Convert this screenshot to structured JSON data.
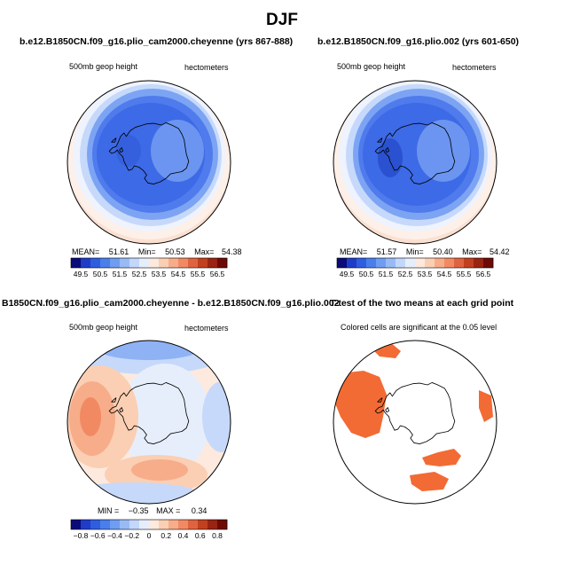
{
  "title": "DJF",
  "panels": [
    {
      "title": "b.e12.B1850CN.f09_g16.plio_cam2000.cheyenne (yrs 867-888)",
      "left_label": "500mb geop height",
      "right_label": "hectometers",
      "stats": {
        "mean_label": "MEAN=",
        "mean": "51.61",
        "min_label": "Min=",
        "min": "50.53",
        "max_label": "Max=",
        "max": "54.38"
      }
    },
    {
      "title": "b.e12.B1850CN.f09_g16.plio.002 (yrs 601-650)",
      "left_label": "500mb geop height",
      "right_label": "hectometers",
      "stats": {
        "mean_label": "MEAN=",
        "mean": "51.57",
        "min_label": "Min=",
        "min": "50.40",
        "max_label": "Max=",
        "max": "54.42"
      }
    },
    {
      "title": "B1850CN.f09_g16.plio_cam2000.cheyenne - b.e12.B1850CN.f09_g16.plio.002",
      "left_label": "500mb geop height",
      "right_label": "hectometers",
      "stats": {
        "min_label": "MIN =",
        "min": "−0.35",
        "max_label": "MAX =",
        "max": "0.34"
      }
    },
    {
      "title": "T-test of the two means at each grid point",
      "note": "Colored cells are significant at the 0.05 level"
    }
  ],
  "chart_data": [
    {
      "type": "heatmap",
      "projection": "polar stereographic (south)",
      "variable": "500mb geop height",
      "units": "hectometers",
      "colorbar_labels": [
        "49.5",
        "50.5",
        "51.5",
        "52.5",
        "53.5",
        "54.5",
        "55.5",
        "56.5"
      ],
      "colorbar_colors": [
        "#0a0a7a",
        "#1f3cc8",
        "#2f5de0",
        "#4a7eeb",
        "#6f9df2",
        "#98bbf6",
        "#c2d7fb",
        "#e6eefc",
        "#fde9dd",
        "#fbcfb3",
        "#f7ad8a",
        "#f18a63",
        "#e0633f",
        "#c2401f",
        "#9b2311",
        "#6e0a05"
      ],
      "mean": 51.61,
      "min": 50.53,
      "max": 54.38
    },
    {
      "type": "heatmap",
      "projection": "polar stereographic (south)",
      "variable": "500mb geop height",
      "units": "hectometers",
      "colorbar_labels": [
        "49.5",
        "50.5",
        "51.5",
        "52.5",
        "53.5",
        "54.5",
        "55.5",
        "56.5"
      ],
      "colorbar_colors": [
        "#0a0a7a",
        "#1f3cc8",
        "#2f5de0",
        "#4a7eeb",
        "#6f9df2",
        "#98bbf6",
        "#c2d7fb",
        "#e6eefc",
        "#fde9dd",
        "#fbcfb3",
        "#f7ad8a",
        "#f18a63",
        "#e0633f",
        "#c2401f",
        "#9b2311",
        "#6e0a05"
      ],
      "mean": 51.57,
      "min": 50.4,
      "max": 54.42
    },
    {
      "type": "heatmap",
      "projection": "polar stereographic (south)",
      "variable": "500mb geop height difference",
      "units": "hectometers",
      "colorbar_labels": [
        "−0.8",
        "−0.6",
        "−0.4",
        "−0.2",
        "0",
        "0.2",
        "0.4",
        "0.6",
        "0.8"
      ],
      "colorbar_colors": [
        "#0a0a7a",
        "#1f3cc8",
        "#2f5de0",
        "#4a7eeb",
        "#6f9df2",
        "#98bbf6",
        "#c2d7fb",
        "#e6eefc",
        "#fde9dd",
        "#fbcfb3",
        "#f7ad8a",
        "#f18a63",
        "#e0633f",
        "#c2401f",
        "#9b2311",
        "#6e0a05"
      ],
      "min": -0.35,
      "max": 0.34
    },
    {
      "type": "heatmap",
      "projection": "polar stereographic (south)",
      "significance_color": "#f26b34",
      "significance_level": 0.05
    }
  ]
}
